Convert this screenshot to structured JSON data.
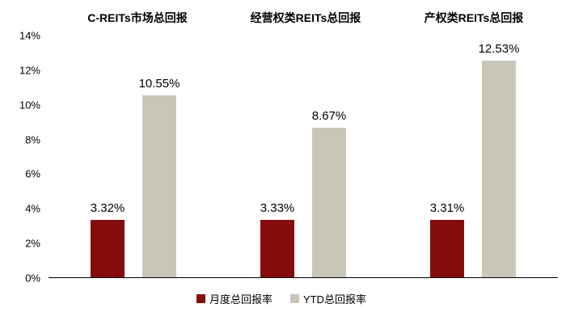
{
  "chart_data": {
    "type": "bar",
    "categories": [
      "C-REITs市场总回报",
      "经营权类REITs总回报",
      "产权类REITs总回报"
    ],
    "series": [
      {
        "name": "月度总回报率",
        "color": "#850D0D",
        "values": [
          3.32,
          3.33,
          3.31
        ]
      },
      {
        "name": "YTD总回报率",
        "color": "#C9C6B8",
        "values": [
          10.55,
          8.67,
          12.53
        ]
      }
    ],
    "value_labels": [
      [
        "3.32%",
        "10.55%"
      ],
      [
        "3.33%",
        "8.67%"
      ],
      [
        "3.31%",
        "12.53%"
      ]
    ],
    "ylim": [
      0,
      14
    ],
    "ytick_step": 2,
    "ytick_labels": [
      "0%",
      "2%",
      "4%",
      "6%",
      "8%",
      "10%",
      "12%",
      "14%"
    ],
    "grid": false,
    "legend_position": "bottom"
  }
}
